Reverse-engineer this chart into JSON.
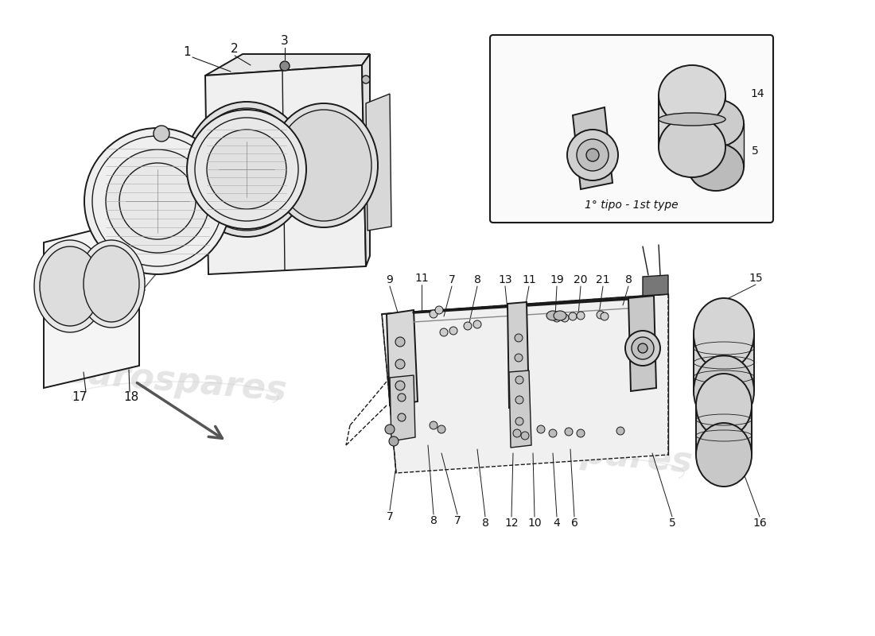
{
  "bg_color": "#ffffff",
  "line_color": "#1a1a1a",
  "label_color": "#111111",
  "watermark_color": "#cccccc",
  "inset_label": "1° tipo - 1st type"
}
